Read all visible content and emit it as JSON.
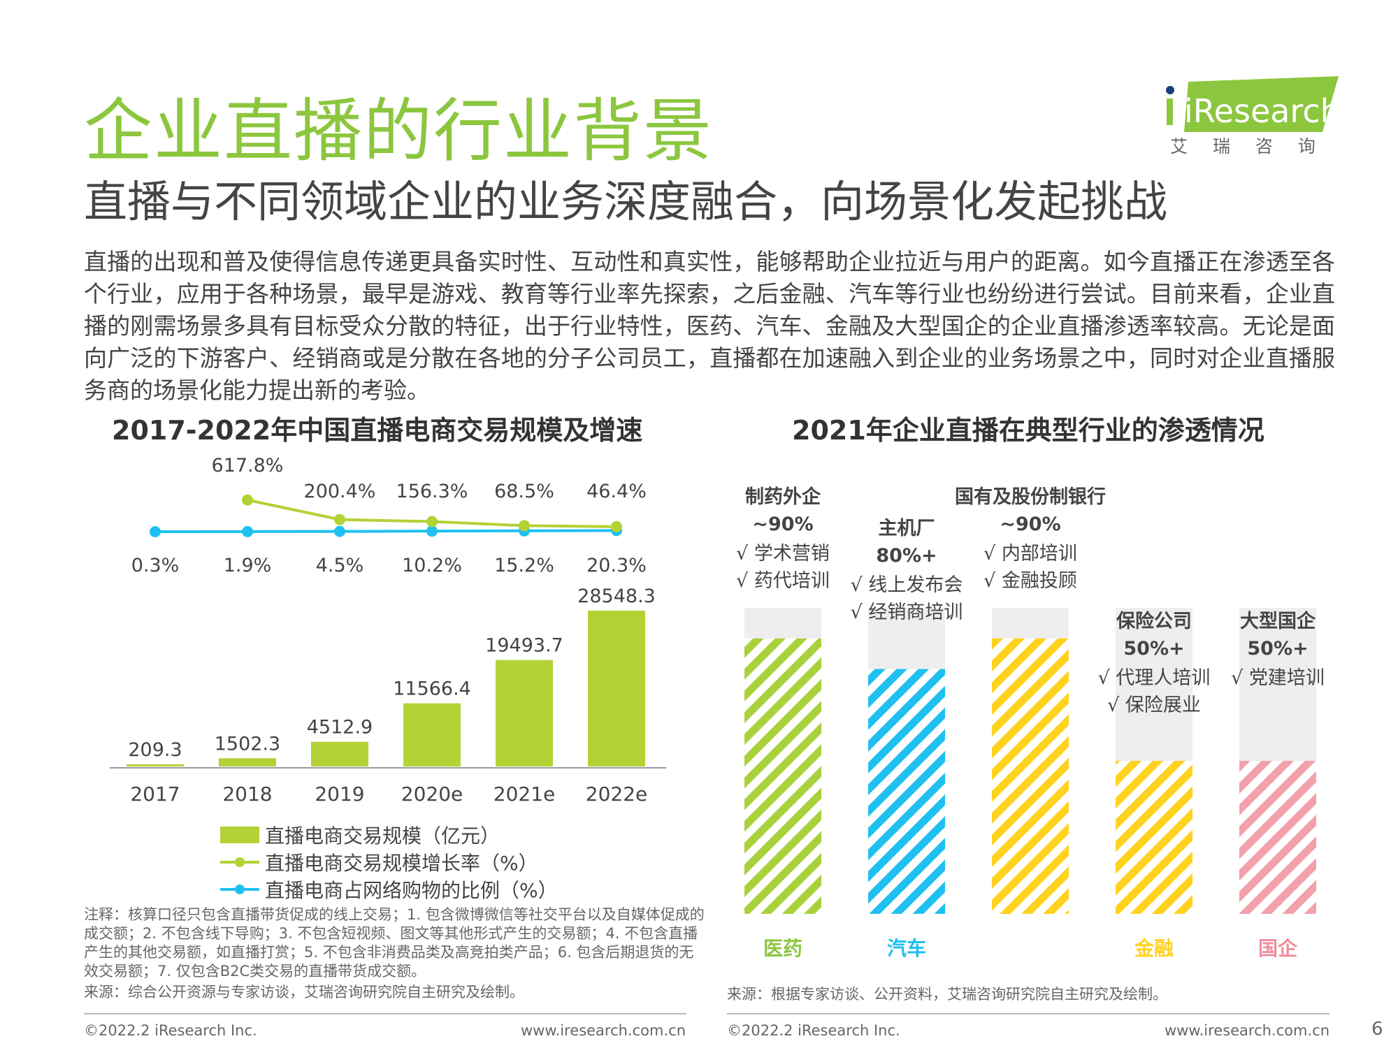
{
  "header": {
    "title": "企业直播的行业背景",
    "subtitle": "直播与不同领域企业的业务深度融合，向场景化发起挑战",
    "intro": "直播的出现和普及使得信息传递更具备实时性、互动性和真实性，能够帮助企业拉近与用户的距离。如今直播正在渗透至各个行业，应用于各种场景，最早是游戏、教育等行业率先探索，之后金融、汽车等行业也纷纷进行尝试。目前来看，企业直播的刚需场景多具有目标受众分散的特征，出于行业特性，医药、汽车、金融及大型国企的企业直播渗透率较高。无论是面向广泛的下游客户、经销商或是分散在各地的分子公司员工，直播都在加速融入到企业的业务场景之中，同时对企业直播服务商的场景化能力提出新的考验。"
  },
  "logo": {
    "brand": "iResearch",
    "cn": "艾 瑞 咨 询",
    "color": "#8cc63f"
  },
  "chart_data": [
    {
      "type": "bar",
      "title": "2017-2022年中国直播电商交易规模及增速",
      "categories": [
        "2017",
        "2018",
        "2019",
        "2020e",
        "2021e",
        "2022e"
      ],
      "series": [
        {
          "name": "直播电商交易规模（亿元）",
          "type": "bar",
          "color": "#b2d235",
          "values": [
            209.3,
            1502.3,
            4512.9,
            11566.4,
            19493.7,
            28548.3
          ],
          "labels": [
            "209.3",
            "1502.3",
            "4512.9",
            "11566.4",
            "19493.7",
            "28548.3"
          ]
        },
        {
          "name": "直播电商交易规模增长率（%）",
          "type": "line",
          "color": "#b2d235",
          "values": [
            null,
            617.8,
            200.4,
            156.3,
            68.5,
            46.4
          ],
          "labels": [
            "",
            "617.8%",
            "200.4%",
            "156.3%",
            "68.5%",
            "46.4%"
          ]
        },
        {
          "name": "直播电商占网络购物的比例（%）",
          "type": "line",
          "color": "#1fc0ef",
          "values": [
            0.3,
            1.9,
            4.5,
            10.2,
            15.2,
            20.3
          ],
          "labels": [
            "0.3%",
            "1.9%",
            "4.5%",
            "10.2%",
            "15.2%",
            "20.3%"
          ]
        }
      ]
    },
    {
      "type": "bar",
      "title": "2021年企业直播在典型行业的渗透情况",
      "ylim": [
        0,
        100
      ],
      "categories": [
        "医药",
        "汽车",
        "金融",
        "金融",
        "国企"
      ],
      "bars": [
        {
          "category": "医药",
          "org": "制药外企",
          "rate_label": "~90%",
          "value": 90,
          "pattern": "#a8d13c",
          "label_color": "#8cc63f",
          "items": [
            "√ 学术营销",
            "√ 药代培训"
          ]
        },
        {
          "category": "汽车",
          "org": "主机厂",
          "rate_label": "80%+",
          "value": 80,
          "pattern": "#1fc0ef",
          "label_color": "#1fc0ef",
          "items": [
            "√ 线上发布会",
            "√ 经销商培训"
          ]
        },
        {
          "category": "",
          "org": "国有及股份制银行",
          "rate_label": "~90%",
          "value": 90,
          "pattern": "#ffd21f",
          "label_color": "#ffd21f",
          "items": [
            "√ 内部培训",
            "√ 金融投顾"
          ]
        },
        {
          "category": "金融",
          "org": "保险公司",
          "rate_label": "50%+",
          "value": 50,
          "pattern": "#ffd21f",
          "label_color": "#ffd21f",
          "items": [
            "√ 代理人培训",
            "√ 保险展业"
          ]
        },
        {
          "category": "国企",
          "org": "大型国企",
          "rate_label": "50%+",
          "value": 50,
          "pattern": "#f2a0aa",
          "label_color": "#f08c9c",
          "items": [
            "√ 党建培训"
          ]
        }
      ]
    }
  ],
  "notes": "注释：核算口径只包含直播带货促成的线上交易；1. 包含微博微信等社交平台以及自媒体促成的成交额；2. 不包含线下导购；3. 不包含短视频、图文等其他形式产生的交易额；4. 不包含直播产生的其他交易额，如直播打赏；5. 不包含非消费品类及高竞拍类产品；6. 包含后期退货的无效交易额；7. 仅包含B2C类交易的直播带货成交额。",
  "source_left": "来源：综合公开资源与专家访谈，艾瑞咨询研究院自主研究及绘制。",
  "source_right": "来源：根据专家访谈、公开资料，艾瑞咨询研究院自主研究及绘制。",
  "footer": {
    "copyright_left": "©2022.2 iResearch Inc.",
    "url_left": "www.iresearch.com.cn",
    "copyright_right": "©2022.2 iResearch Inc.",
    "url_right": "www.iresearch.com.cn",
    "page": "6"
  }
}
